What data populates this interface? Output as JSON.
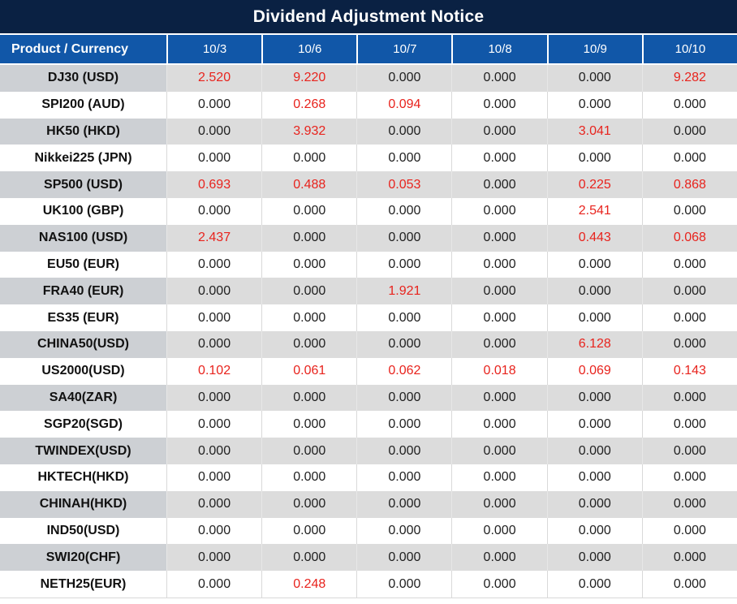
{
  "title": "Dividend Adjustment Notice",
  "table": {
    "product_header": "Product / Currency",
    "date_headers": [
      "10/3",
      "10/6",
      "10/7",
      "10/8",
      "10/9",
      "10/10"
    ],
    "rows": [
      {
        "product": "DJ30 (USD)",
        "values": [
          "2.520",
          "9.220",
          "0.000",
          "0.000",
          "0.000",
          "9.282"
        ]
      },
      {
        "product": "SPI200 (AUD)",
        "values": [
          "0.000",
          "0.268",
          "0.094",
          "0.000",
          "0.000",
          "0.000"
        ]
      },
      {
        "product": "HK50 (HKD)",
        "values": [
          "0.000",
          "3.932",
          "0.000",
          "0.000",
          "3.041",
          "0.000"
        ]
      },
      {
        "product": "Nikkei225 (JPN)",
        "values": [
          "0.000",
          "0.000",
          "0.000",
          "0.000",
          "0.000",
          "0.000"
        ]
      },
      {
        "product": "SP500 (USD)",
        "values": [
          "0.693",
          "0.488",
          "0.053",
          "0.000",
          "0.225",
          "0.868"
        ]
      },
      {
        "product": "UK100 (GBP)",
        "values": [
          "0.000",
          "0.000",
          "0.000",
          "0.000",
          "2.541",
          "0.000"
        ]
      },
      {
        "product": "NAS100 (USD)",
        "values": [
          "2.437",
          "0.000",
          "0.000",
          "0.000",
          "0.443",
          "0.068"
        ]
      },
      {
        "product": "EU50 (EUR)",
        "values": [
          "0.000",
          "0.000",
          "0.000",
          "0.000",
          "0.000",
          "0.000"
        ]
      },
      {
        "product": "FRA40 (EUR)",
        "values": [
          "0.000",
          "0.000",
          "1.921",
          "0.000",
          "0.000",
          "0.000"
        ]
      },
      {
        "product": "ES35 (EUR)",
        "values": [
          "0.000",
          "0.000",
          "0.000",
          "0.000",
          "0.000",
          "0.000"
        ]
      },
      {
        "product": "CHINA50(USD)",
        "values": [
          "0.000",
          "0.000",
          "0.000",
          "0.000",
          "6.128",
          "0.000"
        ]
      },
      {
        "product": "US2000(USD)",
        "values": [
          "0.102",
          "0.061",
          "0.062",
          "0.018",
          "0.069",
          "0.143"
        ]
      },
      {
        "product": "SA40(ZAR)",
        "values": [
          "0.000",
          "0.000",
          "0.000",
          "0.000",
          "0.000",
          "0.000"
        ]
      },
      {
        "product": "SGP20(SGD)",
        "values": [
          "0.000",
          "0.000",
          "0.000",
          "0.000",
          "0.000",
          "0.000"
        ]
      },
      {
        "product": "TWINDEX(USD)",
        "values": [
          "0.000",
          "0.000",
          "0.000",
          "0.000",
          "0.000",
          "0.000"
        ]
      },
      {
        "product": "HKTECH(HKD)",
        "values": [
          "0.000",
          "0.000",
          "0.000",
          "0.000",
          "0.000",
          "0.000"
        ]
      },
      {
        "product": "CHINAH(HKD)",
        "values": [
          "0.000",
          "0.000",
          "0.000",
          "0.000",
          "0.000",
          "0.000"
        ]
      },
      {
        "product": "IND50(USD)",
        "values": [
          "0.000",
          "0.000",
          "0.000",
          "0.000",
          "0.000",
          "0.000"
        ]
      },
      {
        "product": "SWI20(CHF)",
        "values": [
          "0.000",
          "0.000",
          "0.000",
          "0.000",
          "0.000",
          "0.000"
        ]
      },
      {
        "product": "NETH25(EUR)",
        "values": [
          "0.000",
          "0.248",
          "0.000",
          "0.000",
          "0.000",
          "0.000"
        ]
      }
    ]
  },
  "colors": {
    "title_bar_bg": "#0a2143",
    "header_row_bg": "#1157a8",
    "gray_row_product_bg": "#cdd0d4",
    "gray_row_value_bg": "#dcdcdc",
    "zero_value_text": "#1f1f1f",
    "nonzero_value_text": "#e8231d"
  }
}
